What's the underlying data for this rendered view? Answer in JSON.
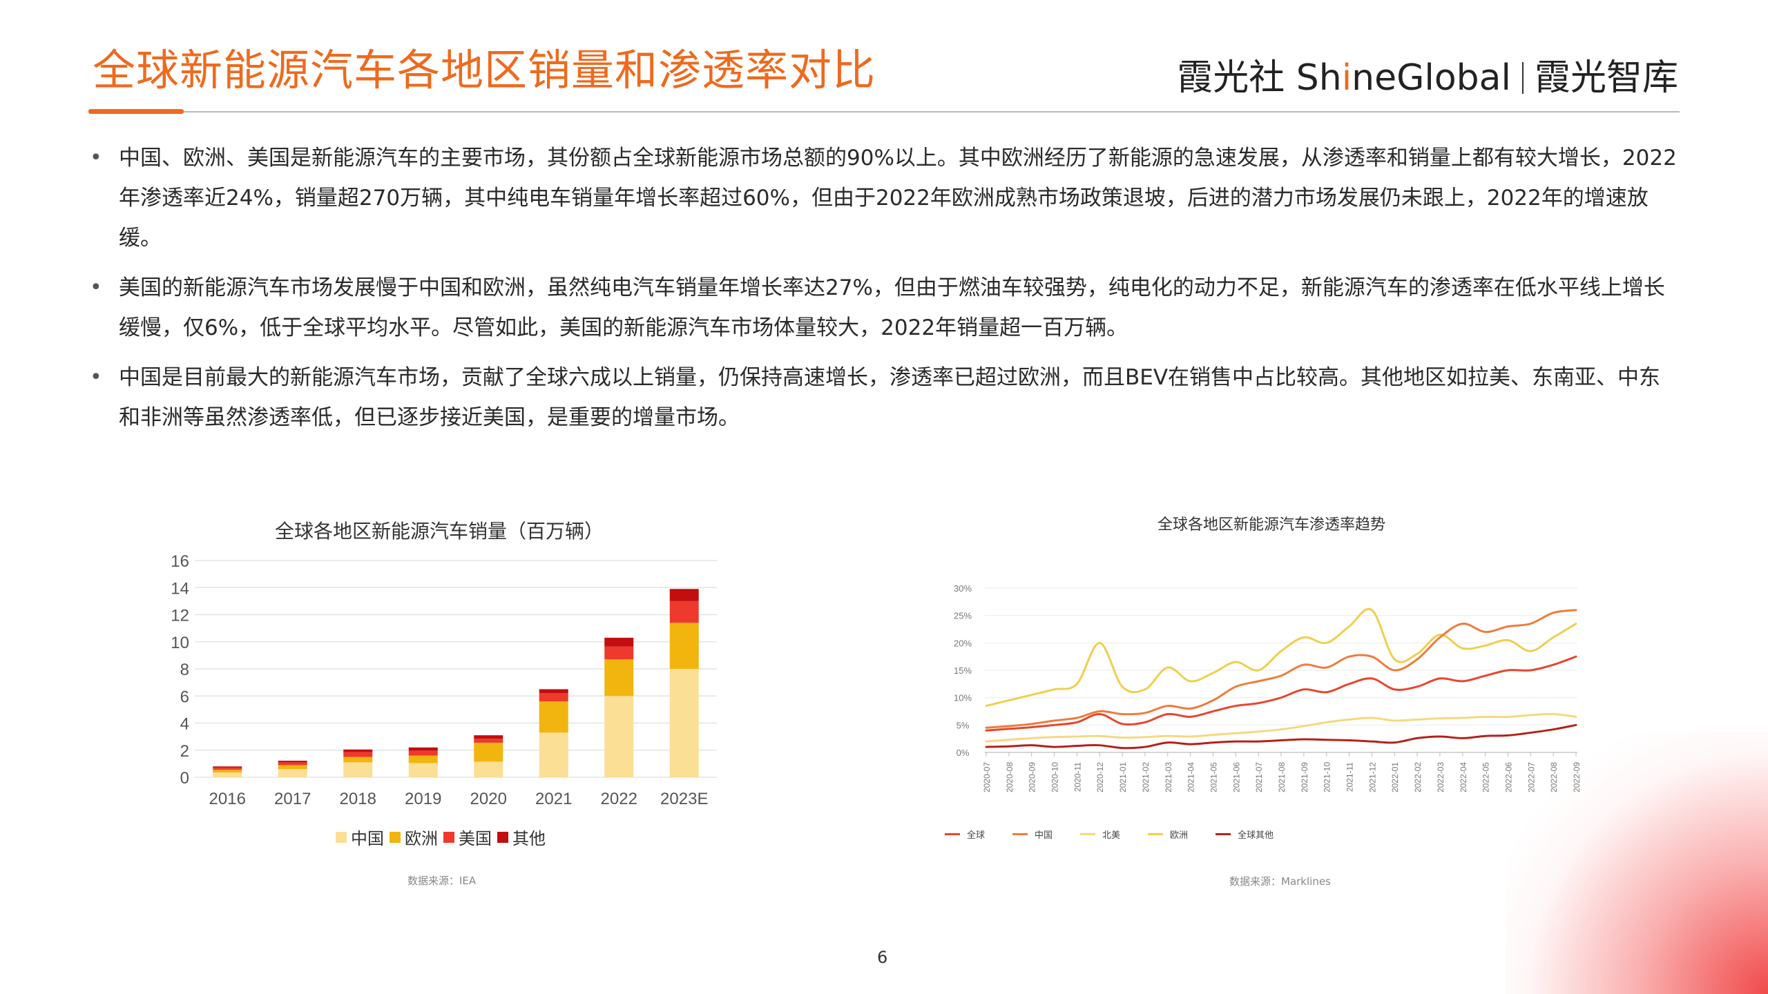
{
  "header": {
    "title": "全球新能源汽车各地区销量和渗透率对比",
    "brand_part1": "霞光社 Sh",
    "brand_i": "i",
    "brand_part2": "neGlobal",
    "brand_part3": "霞光智库",
    "accent_color": "#ee6a1e"
  },
  "bullets": [
    "中国、欧洲、美国是新能源汽车的主要市场，其份额占全球新能源市场总额的90%以上。其中欧洲经历了新能源的急速发展，从渗透率和销量上都有较大增长，2022年渗透率近24%，销量超270万辆，其中纯电车销量年增长率超过60%，但由于2022年欧洲成熟市场政策退坡，后进的潜力市场发展仍未跟上，2022年的增速放缓。",
    "美国的新能源汽车市场发展慢于中国和欧洲，虽然纯电汽车销量年增长率达27%，但由于燃油车较强势，纯电化的动力不足，新能源汽车的渗透率在低水平线上增长缓慢，仅6%，低于全球平均水平。尽管如此，美国的新能源汽车市场体量较大，2022年销量超一百万辆。",
    "中国是目前最大的新能源汽车市场，贡献了全球六成以上销量，仍保持高速增长，渗透率已超过欧洲，而且BEV在销售中占比较高。其他地区如拉美、东南亚、中东和非洲等虽然渗透率低，但已逐步接近美国，是重要的增量市场。"
  ],
  "page_number": "6",
  "chart_data": [
    {
      "type": "bar",
      "stacked": true,
      "title": "全球各地区新能源汽车销量（百万辆）",
      "source": "数据来源：IEA",
      "categories": [
        "2016",
        "2017",
        "2018",
        "2019",
        "2020",
        "2021",
        "2022",
        "2023E"
      ],
      "series": [
        {
          "name": "中国",
          "color": "#fbdf95",
          "values": [
            0.35,
            0.6,
            1.1,
            1.05,
            1.15,
            3.3,
            6.0,
            8.0
          ]
        },
        {
          "name": "欧洲",
          "color": "#f2b40f",
          "values": [
            0.2,
            0.3,
            0.4,
            0.55,
            1.4,
            2.3,
            2.7,
            3.4
          ]
        },
        {
          "name": "美国",
          "color": "#ee3a2c",
          "values": [
            0.15,
            0.2,
            0.35,
            0.35,
            0.3,
            0.6,
            0.95,
            1.6
          ]
        },
        {
          "name": "其他",
          "color": "#c20e0e",
          "values": [
            0.1,
            0.12,
            0.2,
            0.25,
            0.25,
            0.3,
            0.65,
            0.9
          ]
        }
      ],
      "yticks": [
        "0",
        "2",
        "4",
        "6",
        "8",
        "10",
        "12",
        "14",
        "16"
      ],
      "ylim": [
        0,
        16
      ],
      "grid": true,
      "legend": "bottom"
    },
    {
      "type": "line",
      "title": "全球各地区新能源汽车渗透率趋势",
      "source": "数据来源：Marklines",
      "x": [
        "2020-07",
        "2020-08",
        "2020-09",
        "2020-10",
        "2020-11",
        "2020-12",
        "2021-01",
        "2021-02",
        "2021-03",
        "2021-04",
        "2021-05",
        "2021-06",
        "2021-07",
        "2021-08",
        "2021-09",
        "2021-10",
        "2021-11",
        "2021-12",
        "2022-01",
        "2022-02",
        "2022-03",
        "2022-04",
        "2022-05",
        "2022-06",
        "2022-07",
        "2022-08",
        "2022-09"
      ],
      "yticks": [
        "0%",
        "5%",
        "10%",
        "15%",
        "20%",
        "25%",
        "30%"
      ],
      "ylim": [
        0,
        30
      ],
      "grid": true,
      "legend": "bottom",
      "series": [
        {
          "name": "全球",
          "color": "#e8452c",
          "values": [
            4.0,
            4.3,
            4.6,
            5.0,
            5.5,
            7.0,
            5.2,
            5.5,
            7.0,
            6.5,
            7.5,
            8.5,
            9.0,
            10.0,
            11.5,
            11.0,
            12.5,
            13.5,
            11.5,
            12.0,
            13.5,
            13.0,
            14.0,
            15.0,
            15.0,
            16.0,
            17.5
          ]
        },
        {
          "name": "中国",
          "color": "#f07b3a",
          "values": [
            4.5,
            4.8,
            5.2,
            5.8,
            6.3,
            7.5,
            7.0,
            7.2,
            8.5,
            8.0,
            9.5,
            12.0,
            13.0,
            14.0,
            16.0,
            15.5,
            17.5,
            17.5,
            15.0,
            17.0,
            21.0,
            23.5,
            22.0,
            23.0,
            23.5,
            25.5,
            26.0
          ]
        },
        {
          "name": "北美",
          "color": "#f6d87e",
          "values": [
            2.0,
            2.3,
            2.6,
            2.8,
            2.9,
            3.0,
            2.7,
            2.8,
            3.0,
            2.9,
            3.2,
            3.5,
            3.8,
            4.2,
            4.8,
            5.5,
            6.0,
            6.3,
            5.8,
            6.0,
            6.2,
            6.3,
            6.5,
            6.5,
            6.8,
            7.0,
            6.5
          ]
        },
        {
          "name": "欧洲",
          "color": "#f0cf4a",
          "values": [
            8.5,
            9.5,
            10.5,
            11.5,
            12.5,
            20.0,
            12.0,
            11.5,
            15.5,
            13.0,
            14.5,
            16.5,
            15.0,
            18.5,
            21.0,
            20.0,
            23.0,
            26.0,
            17.0,
            18.0,
            21.5,
            19.0,
            19.5,
            20.5,
            18.5,
            21.0,
            23.5
          ]
        },
        {
          "name": "全球其他",
          "color": "#b3221a",
          "values": [
            1.0,
            1.1,
            1.3,
            1.0,
            1.2,
            1.3,
            0.8,
            1.0,
            1.8,
            1.5,
            1.8,
            2.0,
            2.0,
            2.2,
            2.4,
            2.3,
            2.2,
            2.0,
            1.8,
            2.6,
            2.9,
            2.6,
            3.0,
            3.1,
            3.6,
            4.2,
            5.0
          ]
        }
      ]
    }
  ]
}
